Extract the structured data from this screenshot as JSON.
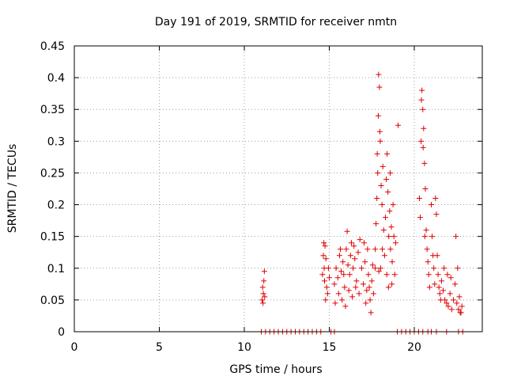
{
  "chart_data": {
    "type": "scatter",
    "title": "Day 191 of 2019, SRMTID for receiver nmtn",
    "xlabel": "GPS time / hours",
    "ylabel": "SRMTID / TECUs",
    "xlim": [
      0,
      24
    ],
    "ylim": [
      0,
      0.45
    ],
    "xticks": [
      "0",
      "5",
      "10",
      "15",
      "20"
    ],
    "xtick_values": [
      0,
      5,
      10,
      15,
      20
    ],
    "yticks": [
      "0",
      "0.05",
      "0.1",
      "0.15",
      "0.2",
      "0.25",
      "0.3",
      "0.35",
      "0.4",
      "0.45"
    ],
    "ytick_values": [
      0,
      0.05,
      0.1,
      0.15,
      0.2,
      0.25,
      0.3,
      0.35,
      0.4,
      0.45
    ],
    "grid": true,
    "marker": "+",
    "color": "#e00000",
    "series": [
      {
        "name": "SRMTID",
        "points": [
          [
            11.05,
            0.05
          ],
          [
            11.1,
            0.045
          ],
          [
            11.12,
            0.06
          ],
          [
            11.15,
            0.08
          ],
          [
            11.18,
            0.095
          ],
          [
            11.2,
            0.055
          ],
          [
            11.08,
            0.07
          ],
          [
            14.6,
            0.09
          ],
          [
            14.65,
            0.12
          ],
          [
            14.7,
            0.1
          ],
          [
            14.72,
            0.08
          ],
          [
            14.75,
            0.135
          ],
          [
            14.8,
            0.115
          ],
          [
            14.85,
            0.07
          ],
          [
            14.9,
            0.06
          ],
          [
            14.95,
            0.1
          ],
          [
            15.0,
            0.085
          ],
          [
            14.68,
            0.14
          ],
          [
            14.78,
            0.05
          ],
          [
            15.3,
            0.075
          ],
          [
            15.4,
            0.1
          ],
          [
            15.5,
            0.085
          ],
          [
            15.6,
            0.12
          ],
          [
            15.7,
            0.095
          ],
          [
            15.8,
            0.11
          ],
          [
            15.9,
            0.07
          ],
          [
            16.0,
            0.13
          ],
          [
            16.1,
            0.105
          ],
          [
            16.2,
            0.09
          ],
          [
            16.3,
            0.14
          ],
          [
            16.4,
            0.1
          ],
          [
            16.5,
            0.115
          ],
          [
            16.6,
            0.08
          ],
          [
            16.7,
            0.125
          ],
          [
            16.8,
            0.145
          ],
          [
            15.35,
            0.045
          ],
          [
            15.55,
            0.06
          ],
          [
            15.75,
            0.05
          ],
          [
            15.95,
            0.04
          ],
          [
            16.15,
            0.065
          ],
          [
            16.35,
            0.055
          ],
          [
            16.55,
            0.07
          ],
          [
            16.75,
            0.06
          ],
          [
            16.05,
            0.158
          ],
          [
            16.25,
            0.12
          ],
          [
            16.45,
            0.135
          ],
          [
            15.65,
            0.13
          ],
          [
            15.85,
            0.09
          ],
          [
            16.9,
            0.1
          ],
          [
            17.0,
            0.075
          ],
          [
            17.1,
            0.11
          ],
          [
            17.2,
            0.065
          ],
          [
            17.3,
            0.09
          ],
          [
            17.4,
            0.05
          ],
          [
            17.5,
            0.08
          ],
          [
            17.6,
            0.06
          ],
          [
            17.7,
            0.1
          ],
          [
            17.05,
            0.14
          ],
          [
            17.25,
            0.13
          ],
          [
            17.45,
            0.03
          ],
          [
            17.15,
            0.045
          ],
          [
            17.35,
            0.07
          ],
          [
            17.55,
            0.105
          ],
          [
            17.7,
            0.13
          ],
          [
            17.75,
            0.17
          ],
          [
            17.8,
            0.21
          ],
          [
            17.85,
            0.25
          ],
          [
            17.88,
            0.34
          ],
          [
            17.9,
            0.405
          ],
          [
            17.95,
            0.385
          ],
          [
            18.0,
            0.3
          ],
          [
            18.05,
            0.23
          ],
          [
            18.1,
            0.2
          ],
          [
            18.15,
            0.26
          ],
          [
            18.2,
            0.16
          ],
          [
            17.82,
            0.28
          ],
          [
            17.92,
            0.095
          ],
          [
            18.02,
            0.1
          ],
          [
            18.12,
            0.13
          ],
          [
            17.97,
            0.315
          ],
          [
            18.25,
            0.12
          ],
          [
            18.3,
            0.18
          ],
          [
            18.35,
            0.24
          ],
          [
            18.4,
            0.28
          ],
          [
            18.45,
            0.22
          ],
          [
            18.5,
            0.15
          ],
          [
            18.55,
            0.19
          ],
          [
            18.6,
            0.13
          ],
          [
            18.65,
            0.165
          ],
          [
            18.7,
            0.11
          ],
          [
            18.75,
            0.2
          ],
          [
            18.8,
            0.15
          ],
          [
            18.85,
            0.09
          ],
          [
            18.9,
            0.14
          ],
          [
            18.38,
            0.09
          ],
          [
            18.48,
            0.07
          ],
          [
            18.58,
            0.25
          ],
          [
            18.68,
            0.075
          ],
          [
            19.05,
            0.325
          ],
          [
            20.3,
            0.21
          ],
          [
            20.35,
            0.18
          ],
          [
            20.4,
            0.3
          ],
          [
            20.45,
            0.38
          ],
          [
            20.5,
            0.35
          ],
          [
            20.55,
            0.32
          ],
          [
            20.6,
            0.265
          ],
          [
            20.65,
            0.225
          ],
          [
            20.7,
            0.16
          ],
          [
            20.75,
            0.13
          ],
          [
            20.8,
            0.11
          ],
          [
            20.85,
            0.09
          ],
          [
            20.9,
            0.07
          ],
          [
            20.42,
            0.365
          ],
          [
            20.52,
            0.29
          ],
          [
            20.62,
            0.15
          ],
          [
            21.0,
            0.2
          ],
          [
            21.05,
            0.15
          ],
          [
            21.1,
            0.12
          ],
          [
            21.15,
            0.1
          ],
          [
            21.2,
            0.075
          ],
          [
            21.25,
            0.21
          ],
          [
            21.3,
            0.185
          ],
          [
            21.35,
            0.12
          ],
          [
            21.4,
            0.09
          ],
          [
            21.45,
            0.07
          ],
          [
            21.5,
            0.06
          ],
          [
            21.55,
            0.05
          ],
          [
            21.6,
            0.08
          ],
          [
            21.7,
            0.065
          ],
          [
            21.8,
            0.05
          ],
          [
            21.9,
            0.045
          ],
          [
            22.0,
            0.04
          ],
          [
            22.1,
            0.06
          ],
          [
            22.2,
            0.035
          ],
          [
            22.3,
            0.05
          ],
          [
            22.4,
            0.075
          ],
          [
            22.5,
            0.045
          ],
          [
            22.6,
            0.035
          ],
          [
            22.7,
            0.03
          ],
          [
            22.8,
            0.04
          ],
          [
            21.75,
            0.1
          ],
          [
            21.95,
            0.09
          ],
          [
            22.15,
            0.085
          ],
          [
            22.45,
            0.15
          ],
          [
            22.55,
            0.1
          ],
          [
            22.65,
            0.055
          ],
          [
            22.75,
            0.03
          ],
          [
            11.0,
            0.0
          ],
          [
            11.25,
            0.0
          ],
          [
            11.5,
            0.0
          ],
          [
            11.75,
            0.0
          ],
          [
            12.0,
            0.0
          ],
          [
            12.25,
            0.0
          ],
          [
            12.5,
            0.0
          ],
          [
            12.75,
            0.0
          ],
          [
            13.0,
            0.0
          ],
          [
            13.25,
            0.0
          ],
          [
            13.5,
            0.0
          ],
          [
            13.75,
            0.0
          ],
          [
            14.0,
            0.0
          ],
          [
            14.25,
            0.0
          ],
          [
            14.5,
            0.0
          ],
          [
            15.1,
            0.0
          ],
          [
            15.3,
            0.0
          ],
          [
            19.0,
            0.0
          ],
          [
            19.25,
            0.0
          ],
          [
            19.5,
            0.0
          ],
          [
            19.75,
            0.0
          ],
          [
            20.0,
            0.0
          ],
          [
            20.25,
            0.0
          ],
          [
            20.5,
            0.0
          ],
          [
            20.8,
            0.0
          ],
          [
            21.0,
            0.0
          ],
          [
            21.3,
            0.0
          ],
          [
            21.9,
            0.0
          ],
          [
            22.6,
            0.0
          ],
          [
            22.85,
            0.0
          ]
        ]
      }
    ]
  }
}
